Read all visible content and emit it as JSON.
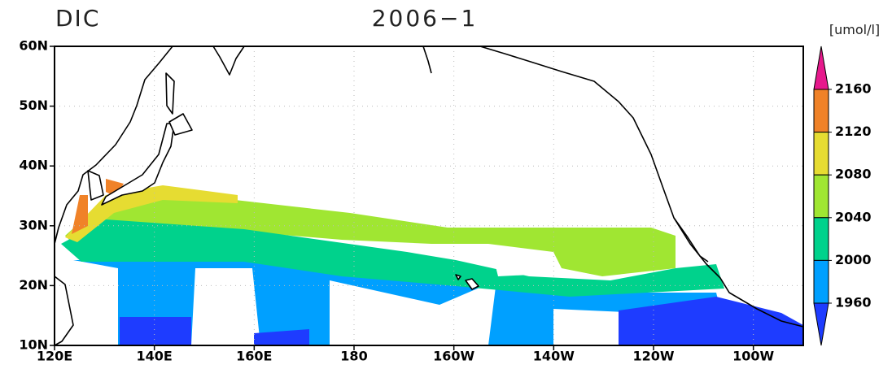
{
  "title_left": "DIC",
  "title_center": "2006−1",
  "units": "[umol/l]",
  "lon_ticks": [
    "120E",
    "140E",
    "160E",
    "180",
    "160W",
    "140W",
    "120W",
    "100W"
  ],
  "lat_ticks": [
    "60N",
    "50N",
    "40N",
    "30N",
    "20N",
    "10N"
  ],
  "colorbar": {
    "levels": [
      2160,
      2120,
      2080,
      2040,
      2000,
      1960
    ],
    "colors": [
      "#e6198c",
      "#f08228",
      "#e6dc32",
      "#a0e632",
      "#00d28c",
      "#00a0ff",
      "#1e3cff"
    ]
  }
}
